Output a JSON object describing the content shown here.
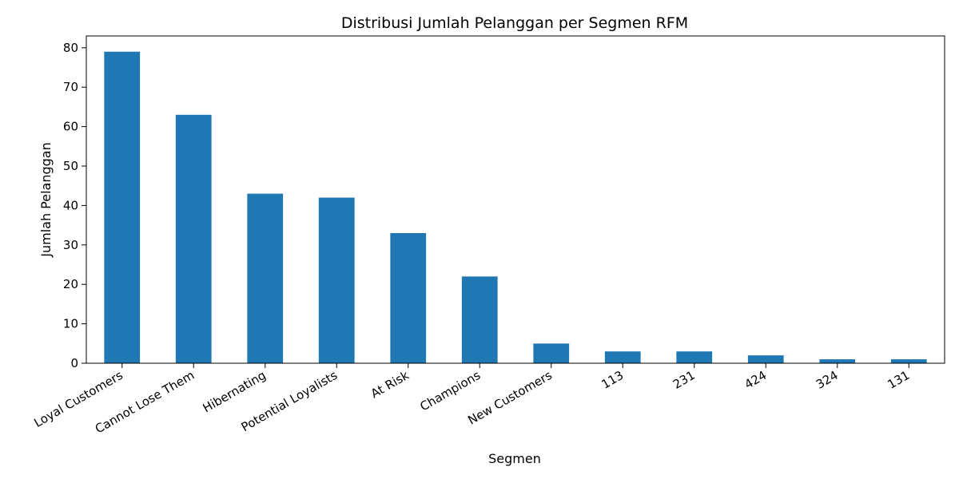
{
  "chart_data": {
    "type": "bar",
    "title": "Distribusi Jumlah Pelanggan per Segmen RFM",
    "xlabel": "Segmen",
    "ylabel": "Jumlah Pelanggan",
    "categories": [
      "Loyal Customers",
      "Cannot Lose Them",
      "Hibernating",
      "Potential Loyalists",
      "At Risk",
      "Champions",
      "New Customers",
      "113",
      "231",
      "424",
      "324",
      "131"
    ],
    "values": [
      79,
      63,
      43,
      42,
      33,
      22,
      5,
      3,
      3,
      2,
      1,
      1
    ],
    "ylim": [
      0,
      83
    ],
    "yticks": [
      0,
      10,
      20,
      30,
      40,
      50,
      60,
      70,
      80
    ],
    "bar_color": "#1f77b4",
    "grid": false,
    "legend": "none"
  }
}
